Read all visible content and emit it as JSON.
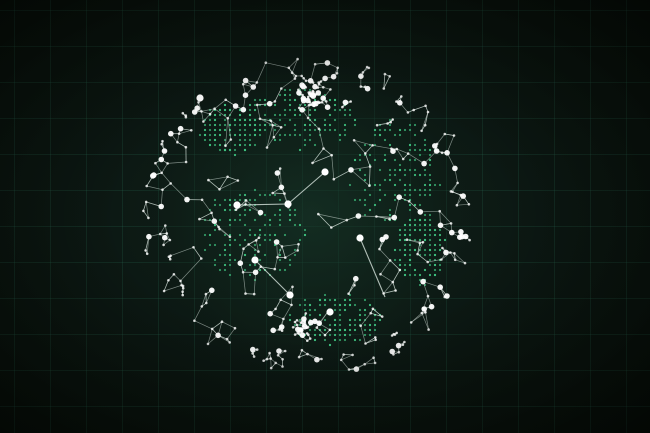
{
  "scene": {
    "subject": "wireframe-network-globe",
    "colors": {
      "background": "#0b1411",
      "grid": "#286e55",
      "node": "#ffffff",
      "link": "#d9e6df",
      "land_dots": "#3fbf7f"
    },
    "icons": [
      "globe-icon",
      "network-node-icon"
    ]
  }
}
